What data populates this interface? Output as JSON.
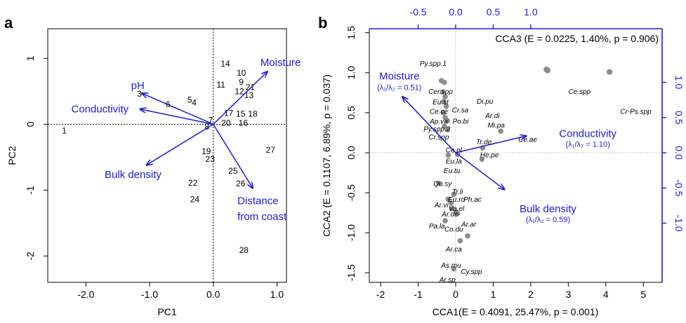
{
  "colors": {
    "axis": "#000000",
    "accent": "#1a1adf",
    "point": "#8c8c8c",
    "refline": "#555555"
  },
  "chart_data": [
    {
      "panel": "a",
      "type": "scatter",
      "xlabel": "PC1",
      "ylabel": "PC2",
      "xlim": [
        -2.6,
        1.15
      ],
      "ylim": [
        -2.4,
        1.45
      ],
      "xticks": [
        -2.0,
        -1.0,
        0.0,
        1.0
      ],
      "xtick_labels": [
        "-2.0",
        "-1.0",
        "0.0",
        "1.0"
      ],
      "yticks": [
        -2,
        -1,
        0,
        1
      ],
      "ytick_labels": [
        "-2",
        "-1",
        "0",
        "1"
      ],
      "reference_lines": {
        "x": 0,
        "y": 0
      },
      "points": [
        {
          "label": "1",
          "x": -2.34,
          "y": -0.1
        },
        {
          "label": "3",
          "x": -1.16,
          "y": 0.46
        },
        {
          "label": "4",
          "x": -0.3,
          "y": 0.33
        },
        {
          "label": "5",
          "x": -0.37,
          "y": 0.37
        },
        {
          "label": "6",
          "x": -0.71,
          "y": 0.3
        },
        {
          "label": "7",
          "x": -0.04,
          "y": 0.06
        },
        {
          "label": "8",
          "x": -0.1,
          "y": -0.04
        },
        {
          "label": "9",
          "x": 0.44,
          "y": 0.64
        },
        {
          "label": "10",
          "x": 0.44,
          "y": 0.78
        },
        {
          "label": "11",
          "x": 0.12,
          "y": 0.6
        },
        {
          "label": "12",
          "x": 0.41,
          "y": 0.5
        },
        {
          "label": "13",
          "x": 0.56,
          "y": 0.44
        },
        {
          "label": "14",
          "x": 0.19,
          "y": 0.92
        },
        {
          "label": "15",
          "x": 0.43,
          "y": 0.16
        },
        {
          "label": "16",
          "x": 0.47,
          "y": 0.02
        },
        {
          "label": "17",
          "x": 0.24,
          "y": 0.17
        },
        {
          "label": "18",
          "x": 0.62,
          "y": 0.16
        },
        {
          "label": "19",
          "x": -0.11,
          "y": -0.41
        },
        {
          "label": "20",
          "x": 0.2,
          "y": 0.02
        },
        {
          "label": "21",
          "x": 0.58,
          "y": 0.56
        },
        {
          "label": "22",
          "x": -0.32,
          "y": -0.89
        },
        {
          "label": "23",
          "x": -0.05,
          "y": -0.53
        },
        {
          "label": "24",
          "x": -0.29,
          "y": -1.14
        },
        {
          "label": "25",
          "x": 0.31,
          "y": -0.71
        },
        {
          "label": "26",
          "x": 0.43,
          "y": -0.9
        },
        {
          "label": "27",
          "x": 0.9,
          "y": -0.39
        },
        {
          "label": "28",
          "x": 0.48,
          "y": -1.91
        }
      ],
      "vectors": [
        {
          "name": "Moisture",
          "x": 0.85,
          "y": 0.8
        },
        {
          "name": "pH",
          "x": -1.12,
          "y": 0.47
        },
        {
          "name": "Conductivity",
          "x": -1.15,
          "y": 0.23
        },
        {
          "name": "Bulk density",
          "x": -1.05,
          "y": -0.62
        },
        {
          "name": "Distance from coast",
          "x": 0.62,
          "y": -0.97
        }
      ],
      "vector_labels": [
        {
          "text": "Moisture",
          "x": 0.74,
          "y": 0.94,
          "anchor": "start"
        },
        {
          "text": "pH",
          "x": -1.08,
          "y": 0.59,
          "anchor": "end"
        },
        {
          "text": "Conductivity",
          "x": -1.78,
          "y": 0.23,
          "anchor": "middle"
        },
        {
          "text": "Bulk density",
          "x": -1.26,
          "y": -0.76,
          "anchor": "middle"
        },
        {
          "text": "Distance",
          "x": 0.38,
          "y": -1.16,
          "anchor": "start"
        },
        {
          "text": "from coast",
          "x": 0.38,
          "y": -1.4,
          "anchor": "start"
        }
      ]
    },
    {
      "panel": "b",
      "type": "scatter",
      "xlabel": "CCA1(E = 0.4091, 25.47%, p = 0.001)",
      "ylabel": "CCA2 (E = 0.1107, 6.89%, p = 0.037)",
      "annotation": "CCA3 (E = 0.0225, 1.40%, p = 0.906)",
      "xlim": [
        -2.3,
        5.5
      ],
      "ylim": [
        -1.62,
        1.55
      ],
      "xticks": [
        -2,
        -1,
        0,
        1,
        2,
        3,
        4,
        5
      ],
      "xtick_labels": [
        "-2",
        "-1",
        "0",
        "1",
        "2",
        "3",
        "4",
        "5"
      ],
      "yticks": [
        -1.5,
        -1.0,
        -0.5,
        0.0,
        0.5,
        1.0,
        1.5
      ],
      "ytick_labels": [
        "-1.5",
        "-1.0",
        "-0.5",
        "0.0",
        "0.5",
        "1.0",
        "1.5"
      ],
      "top_axis": {
        "ticks": [
          -0.5,
          0.0,
          0.5,
          1.0
        ],
        "tick_labels": [
          "-0.5",
          "0.0",
          "0.5",
          "1.0"
        ],
        "data_scale": "x_b = 2.0 * x"
      },
      "right_axis": {
        "ticks": [
          -1.0,
          -0.5,
          0.0,
          0.5,
          1.0
        ],
        "tick_labels": [
          "-1.0",
          "-0.5",
          "0.0",
          "0.5",
          "1.0"
        ],
        "data_scale": "y_b = 0.88 * y"
      },
      "reference_lines": {
        "x": 0,
        "y": 0
      },
      "points": [
        {
          "x": -0.38,
          "y": 0.9
        },
        {
          "x": -0.3,
          "y": 0.88
        },
        {
          "x": -0.35,
          "y": 0.76
        },
        {
          "x": -0.28,
          "y": 0.7
        },
        {
          "x": -0.32,
          "y": 0.64
        },
        {
          "x": -0.25,
          "y": 0.58
        },
        {
          "x": -0.33,
          "y": 0.5
        },
        {
          "x": -0.28,
          "y": 0.44
        },
        {
          "x": -0.22,
          "y": 0.4
        },
        {
          "x": -0.3,
          "y": 0.33
        },
        {
          "x": -0.22,
          "y": 0.29
        },
        {
          "x": 2.42,
          "y": 1.04
        },
        {
          "x": 2.45,
          "y": 1.03
        },
        {
          "x": 4.1,
          "y": 1.01
        },
        {
          "x": 1.2,
          "y": 0.27
        },
        {
          "x": 0.72,
          "y": 0.06
        },
        {
          "x": -0.2,
          "y": -0.03
        },
        {
          "x": 0.05,
          "y": -0.02
        },
        {
          "x": 0.7,
          "y": -0.08
        },
        {
          "x": -0.45,
          "y": -0.38
        },
        {
          "x": -0.05,
          "y": -0.52
        },
        {
          "x": -0.2,
          "y": -0.58
        },
        {
          "x": -0.12,
          "y": -0.63
        },
        {
          "x": -0.1,
          "y": -0.7
        },
        {
          "x": 0.02,
          "y": -0.74
        },
        {
          "x": 0.05,
          "y": -0.76
        },
        {
          "x": -0.28,
          "y": -0.85
        },
        {
          "x": 0.32,
          "y": -1.04
        },
        {
          "x": 0.12,
          "y": -1.1
        },
        {
          "x": -0.05,
          "y": -1.45
        }
      ],
      "species_labels": [
        {
          "text": "Py.spp.1",
          "x": -0.6,
          "y": 1.12
        },
        {
          "text": "Cer.spp",
          "x": -0.4,
          "y": 0.77
        },
        {
          "text": "Eu.st",
          "x": -0.4,
          "y": 0.64
        },
        {
          "text": "Ce.ce",
          "x": -0.45,
          "y": 0.52
        },
        {
          "text": "Cr.sa",
          "x": 0.12,
          "y": 0.54
        },
        {
          "text": "Di.pu",
          "x": 0.78,
          "y": 0.65
        },
        {
          "text": "Ce.spp",
          "x": 3.3,
          "y": 0.77
        },
        {
          "text": "Cr-Ps.spp",
          "x": 4.8,
          "y": 0.52
        },
        {
          "text": "Ar.di",
          "x": 0.98,
          "y": 0.47
        },
        {
          "text": "Ap.va",
          "x": -0.45,
          "y": 0.4
        },
        {
          "text": "Po.bi",
          "x": 0.13,
          "y": 0.4
        },
        {
          "text": "Mi.pa",
          "x": 1.08,
          "y": 0.35
        },
        {
          "text": "Py.spp.2",
          "x": -0.5,
          "y": 0.3
        },
        {
          "text": "Cr.spp",
          "x": -0.45,
          "y": 0.2
        },
        {
          "text": "Ce.ae",
          "x": 1.92,
          "y": 0.17
        },
        {
          "text": "Tr.de",
          "x": 0.75,
          "y": 0.14
        },
        {
          "text": "Ce.pl",
          "x": -0.05,
          "y": 0.04
        },
        {
          "text": "He.pe",
          "x": 0.9,
          "y": -0.02
        },
        {
          "text": "Eu.la",
          "x": -0.05,
          "y": -0.1
        },
        {
          "text": "Eu.tu",
          "x": -0.1,
          "y": -0.22
        },
        {
          "text": "Qu.sy",
          "x": -0.35,
          "y": -0.38
        },
        {
          "text": "Tr.li",
          "x": 0.05,
          "y": -0.48
        },
        {
          "text": "Eu.ro",
          "x": 0.02,
          "y": -0.58
        },
        {
          "text": "Ph.ac",
          "x": 0.45,
          "y": -0.58
        },
        {
          "text": "Ar.vi",
          "x": -0.38,
          "y": -0.65
        },
        {
          "text": "Va.el",
          "x": 0.02,
          "y": -0.69
        },
        {
          "text": "Ar.de",
          "x": -0.15,
          "y": -0.76
        },
        {
          "text": "Ar.ar",
          "x": 0.35,
          "y": -0.89
        },
        {
          "text": "Pa.la",
          "x": -0.5,
          "y": -0.91
        },
        {
          "text": "Co.du",
          "x": -0.05,
          "y": -0.95
        },
        {
          "text": "Ar.ca",
          "x": -0.05,
          "y": -1.2
        },
        {
          "text": "As.mu",
          "x": -0.12,
          "y": -1.4
        },
        {
          "text": "Cy.spp",
          "x": 0.42,
          "y": -1.48
        },
        {
          "text": "Ar.sp",
          "x": -0.22,
          "y": -1.58
        }
      ],
      "vectors": [
        {
          "name": "Moisture",
          "x": -1.42,
          "y": 0.7
        },
        {
          "name": "Conductivity",
          "x": 1.88,
          "y": 0.21
        },
        {
          "name": "Bulk density",
          "x": 1.3,
          "y": -0.46
        }
      ],
      "vector_labels": [
        {
          "text": "Moisture",
          "sub": "(λ₁/λ₂ = 0.51)",
          "x": -1.5,
          "y": 0.96,
          "sub_y": 0.82,
          "anchor": "middle"
        },
        {
          "text": "Conductivity",
          "sub": "(λ₁/λ₂ = 1.10)",
          "x": 3.52,
          "y": 0.24,
          "sub_y": 0.11,
          "anchor": "middle"
        },
        {
          "text": "Bulk density",
          "sub": "(λ₁/λ₂ = 0.59)",
          "x": 2.46,
          "y": -0.7,
          "sub_y": -0.83,
          "anchor": "middle"
        }
      ]
    }
  ]
}
